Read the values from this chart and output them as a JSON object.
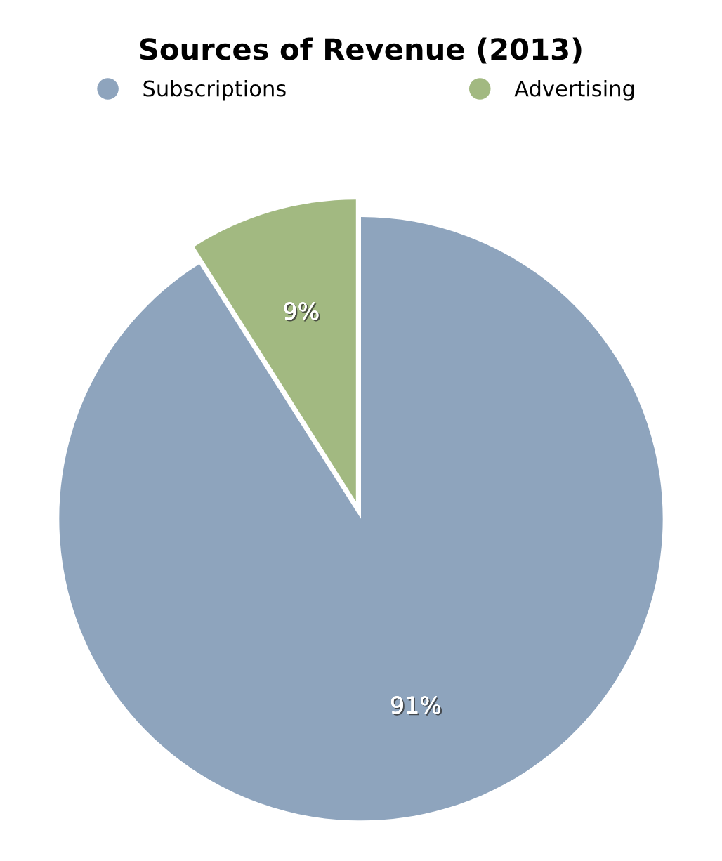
{
  "chart_data": {
    "type": "pie",
    "title": "Sources of Revenue (2013)",
    "categories": [
      "Subscriptions",
      "Advertising"
    ],
    "values": [
      91,
      9
    ],
    "colors": [
      "#8ea4bd",
      "#a2b981"
    ],
    "value_labels": [
      "91%",
      "9%"
    ],
    "legend": "top"
  }
}
